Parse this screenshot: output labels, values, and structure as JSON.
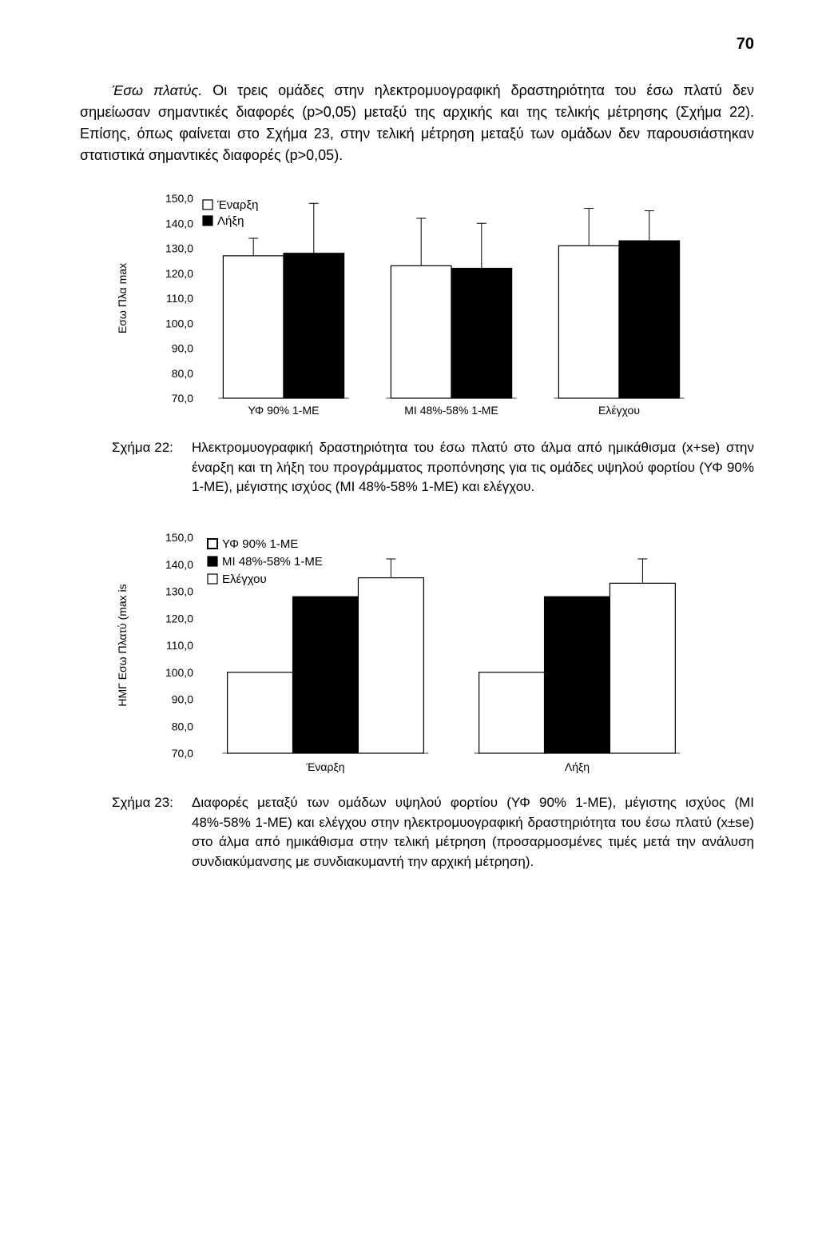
{
  "page_number": "70",
  "paragraph": {
    "lead_italic": "Έσω πλατύς.",
    "rest": " Οι τρεις ομάδες στην ηλεκτρομυογραφική δραστηριότητα του έσω πλατύ δεν σημείωσαν σημαντικές διαφορές (p>0,05) μεταξύ της αρχικής και της τελικής μέτρησης (Σχήμα 22). Επίσης, όπως φαίνεται στο Σχήμα 23, στην τελική μέτρηση μεταξύ των ομάδων δεν παρουσιάστηκαν στατιστικά σημαντικές διαφορές (p>0,05)."
  },
  "chart22": {
    "type": "bar",
    "y_label": "Εσω Πλα     max",
    "y_ticks": [
      "150,0",
      "140,0",
      "130,0",
      "120,0",
      "110,0",
      "100,0",
      "90,0",
      "80,0",
      "70,0"
    ],
    "ylim": [
      70,
      150
    ],
    "legend": [
      {
        "label": "Έναρξη",
        "fill": "#ffffff",
        "marker": "square-open"
      },
      {
        "label": "Λήξη",
        "fill": "#000000",
        "marker": "square-filled"
      }
    ],
    "categories": [
      "ΥΦ 90% 1-ΜΕ",
      "ΜΙ 48%-58% 1-ΜΕ",
      "Ελέγχου"
    ],
    "series": {
      "enarxi": {
        "fill": "#ffffff",
        "stroke": "#000000",
        "values": [
          127,
          123,
          131
        ],
        "err": [
          7,
          19,
          15
        ]
      },
      "lixi": {
        "fill": "#000000",
        "stroke": "#000000",
        "values": [
          128,
          122,
          133
        ],
        "err": [
          20,
          18,
          12
        ]
      }
    },
    "bar_width": 0.36,
    "background": "#ffffff",
    "axis_color": "#000000",
    "font_size_ticks": 14,
    "font_size_legend": 15
  },
  "caption22": {
    "label": "Σχήμα 22:",
    "text": "Ηλεκτρομυογραφική δραστηριότητα του έσω πλατύ στο άλμα από ημικάθισμα (x+se) στην έναρξη και τη λήξη του προγράμματος προπόνησης για τις ομάδες υψηλού φορτίου (ΥΦ 90% 1-ΜΕ), μέγιστης ισχύος (ΜΙ 48%-58% 1-ΜΕ) και ελέγχου."
  },
  "chart23": {
    "type": "bar",
    "y_label": "ΗΜΓ Εσω Πλατύ (max is",
    "y_ticks": [
      "150,0",
      "140,0",
      "130,0",
      "120,0",
      "110,0",
      "100,0",
      "90,0",
      "80,0",
      "70,0"
    ],
    "ylim": [
      70,
      150
    ],
    "legend": [
      {
        "label": "ΥΦ 90% 1-ΜΕ",
        "fill": "#ffffff",
        "marker": "square-open-thick"
      },
      {
        "label": "ΜΙ 48%-58% 1-ΜΕ",
        "fill": "#000000",
        "marker": "square-filled"
      },
      {
        "label": "Ελέγχου",
        "fill": "#ffffff",
        "marker": "square-open"
      }
    ],
    "categories": [
      "Έναρξη",
      "Λήξη"
    ],
    "series": {
      "yf": {
        "fill": "#ffffff",
        "stroke": "#000000",
        "values": [
          100,
          100
        ],
        "err": [
          0,
          0
        ]
      },
      "mi": {
        "fill": "#000000",
        "stroke": "#000000",
        "values": [
          128,
          128
        ],
        "err": [
          0,
          0
        ]
      },
      "control": {
        "fill": "#ffffff",
        "stroke": "#000000",
        "values": [
          135,
          133
        ],
        "err": [
          7,
          9
        ]
      }
    },
    "bar_width": 0.26,
    "background": "#ffffff",
    "axis_color": "#000000",
    "font_size_ticks": 14,
    "font_size_legend": 15
  },
  "caption23": {
    "label": "Σχήμα 23:",
    "text": "Διαφορές μεταξύ των ομάδων υψηλού φορτίου (ΥΦ 90% 1-ΜΕ), μέγιστης ισχύος (ΜΙ 48%-58% 1-ΜΕ) και ελέγχου στην ηλεκτρομυογραφική δραστηριότητα του έσω πλατύ (x±se) στο άλμα από ημικάθισμα στην τελική μέτρηση (προσαρμοσμένες τιμές μετά την ανάλυση συνδιακύμανσης με συνδιακυμαντή την αρχική μέτρηση)."
  }
}
